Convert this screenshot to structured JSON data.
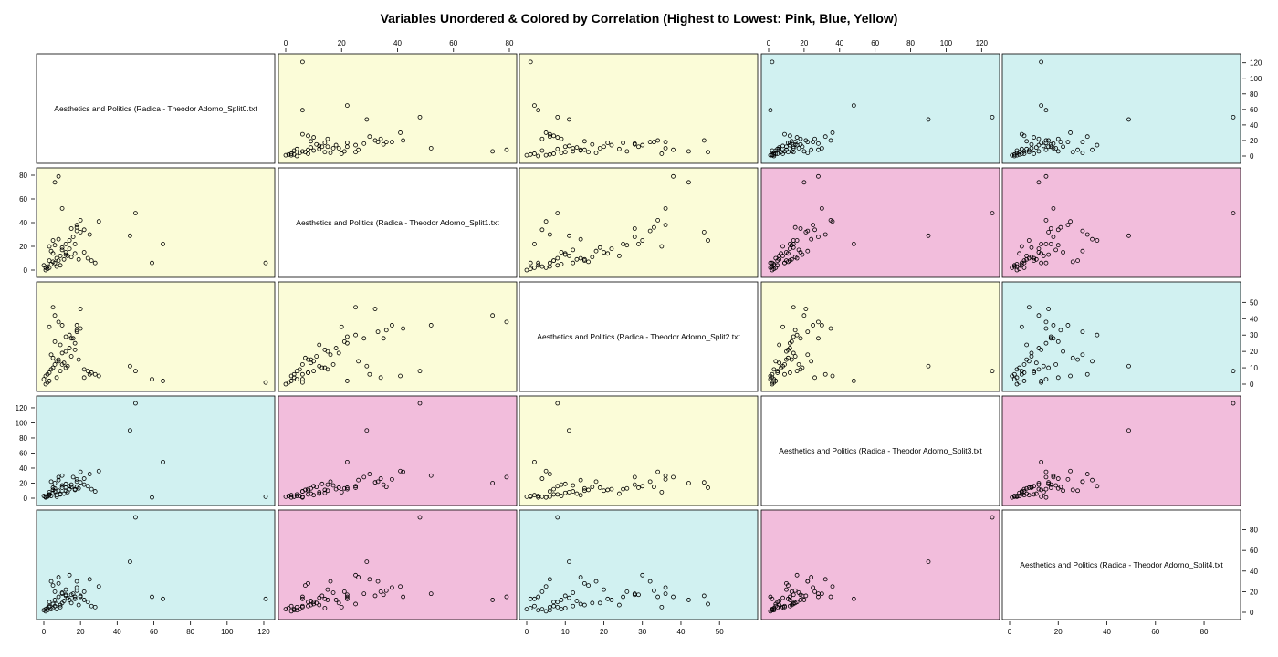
{
  "chart_data": {
    "type": "scatter",
    "title": "Variables Unordered & Colored by Correlation (Highest to Lowest: Pink, Blue, Yellow)",
    "variables": [
      "Aesthetics and Politics (Radica - Theodor Adorno_Split0.txt",
      "Aesthetics and Politics (Radica - Theodor Adorno_Split1.txt",
      "Aesthetics and Politics (Radica - Theodor Adorno_Split2.txt",
      "Aesthetics and Politics (Radica - Theodor Adorno_Split3.txt",
      "Aesthetics and Politics (Radica - Theodor Adorno_Split4.txt"
    ],
    "ranges": [
      [
        0,
        122
      ],
      [
        0,
        80
      ],
      [
        0,
        58
      ],
      [
        0,
        126
      ],
      [
        0,
        92
      ]
    ],
    "ticks": [
      [
        0,
        20,
        40,
        60,
        80,
        100,
        120
      ],
      [
        0,
        20,
        40,
        60,
        80
      ],
      [
        0,
        10,
        20,
        30,
        40,
        50
      ],
      [
        0,
        20,
        40,
        60,
        80,
        100,
        120
      ],
      [
        0,
        20,
        40,
        60,
        80
      ]
    ],
    "correlation_colors": {
      "pink": "#f2bddc",
      "blue": "#d1f1f1",
      "yellow": "#fbfcd8",
      "diagonal": "#ffffff"
    },
    "panel_colors": [
      [
        "diagonal",
        "yellow",
        "yellow",
        "blue",
        "blue"
      ],
      [
        "yellow",
        "diagonal",
        "yellow",
        "pink",
        "pink"
      ],
      [
        "yellow",
        "yellow",
        "diagonal",
        "yellow",
        "blue"
      ],
      [
        "blue",
        "pink",
        "yellow",
        "diagonal",
        "pink"
      ],
      [
        "blue",
        "pink",
        "blue",
        "pink",
        "diagonal"
      ]
    ],
    "observations": [
      [
        121,
        6,
        1,
        2,
        13
      ],
      [
        65,
        22,
        2,
        48,
        13
      ],
      [
        59,
        6,
        3,
        1,
        15
      ],
      [
        50,
        48,
        8,
        126,
        92
      ],
      [
        47,
        29,
        11,
        90,
        49
      ],
      [
        30,
        41,
        5,
        36,
        25
      ],
      [
        25,
        30,
        6,
        32,
        32
      ],
      [
        22,
        34,
        4,
        26,
        20
      ],
      [
        20,
        32,
        46,
        21,
        16
      ],
      [
        18,
        36,
        33,
        15,
        21
      ],
      [
        15,
        35,
        28,
        18,
        17
      ],
      [
        14,
        25,
        30,
        16,
        36
      ],
      [
        12,
        22,
        29,
        14,
        17
      ],
      [
        10,
        52,
        36,
        30,
        18
      ],
      [
        8,
        79,
        38,
        28,
        15
      ],
      [
        6,
        74,
        42,
        20,
        12
      ],
      [
        5,
        25,
        47,
        14,
        8
      ],
      [
        3,
        20,
        35,
        8,
        5
      ],
      [
        20,
        42,
        34,
        35,
        15
      ],
      [
        18,
        38,
        36,
        25,
        24
      ],
      [
        18,
        33,
        32,
        22,
        30
      ],
      [
        16,
        28,
        28,
        28,
        18
      ],
      [
        17,
        22,
        25,
        12,
        15
      ],
      [
        14,
        18,
        22,
        12,
        12
      ],
      [
        12,
        15,
        20,
        10,
        22
      ],
      [
        10,
        19,
        19,
        14,
        9
      ],
      [
        9,
        12,
        24,
        6,
        7
      ],
      [
        8,
        8,
        15,
        10,
        28
      ],
      [
        7,
        10,
        14,
        4,
        8
      ],
      [
        6,
        6,
        12,
        9,
        6
      ],
      [
        5,
        14,
        10,
        7,
        4
      ],
      [
        4,
        5,
        9,
        3,
        3
      ],
      [
        3,
        8,
        7,
        5,
        10
      ],
      [
        2,
        3,
        6,
        2,
        2
      ],
      [
        1,
        2,
        5,
        1,
        1
      ],
      [
        0,
        4,
        3,
        3,
        2
      ],
      [
        22,
        15,
        9,
        18,
        12
      ],
      [
        24,
        10,
        8,
        16,
        10
      ],
      [
        26,
        8,
        7,
        12,
        6
      ],
      [
        28,
        6,
        6,
        9,
        5
      ],
      [
        13,
        12,
        11,
        8,
        14
      ],
      [
        11,
        9,
        13,
        6,
        11
      ],
      [
        9,
        4,
        8,
        5,
        5
      ],
      [
        7,
        3,
        4,
        2,
        3
      ],
      [
        3,
        2,
        2,
        4,
        6
      ],
      [
        2,
        1,
        1,
        3,
        4
      ],
      [
        1,
        0,
        0,
        2,
        3
      ],
      [
        5,
        7,
        16,
        11,
        26
      ],
      [
        4,
        16,
        18,
        22,
        30
      ],
      [
        6,
        21,
        26,
        13,
        20
      ],
      [
        8,
        26,
        14,
        24,
        34
      ],
      [
        10,
        17,
        12,
        17,
        19
      ],
      [
        12,
        13,
        10,
        19,
        16
      ],
      [
        15,
        11,
        17,
        15,
        9
      ],
      [
        17,
        14,
        21,
        11,
        13
      ],
      [
        19,
        9,
        15,
        13,
        7
      ]
    ]
  }
}
